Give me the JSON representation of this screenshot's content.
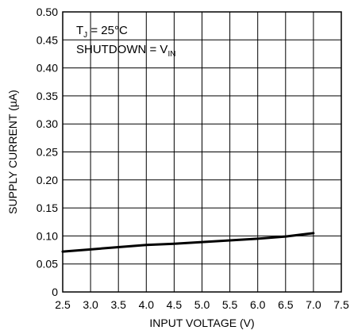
{
  "chart_data": {
    "type": "line",
    "xlabel": "INPUT VOLTAGE (V)",
    "ylabel": "SUPPLY CURRENT (µA)",
    "xlim": [
      2.5,
      7.5
    ],
    "ylim": [
      0,
      0.5
    ],
    "x_ticks": [
      "2.5",
      "3.0",
      "3.5",
      "4.0",
      "4.5",
      "5.0",
      "5.5",
      "6.0",
      "6.5",
      "7.0",
      "7.5"
    ],
    "y_ticks": [
      "0",
      "0.05",
      "0.10",
      "0.15",
      "0.20",
      "0.25",
      "0.30",
      "0.35",
      "0.40",
      "0.45",
      "0.50"
    ],
    "grid": true,
    "series": [
      {
        "x": [
          2.5,
          3.0,
          3.5,
          4.0,
          4.5,
          5.0,
          5.5,
          6.0,
          6.5,
          7.0
        ],
        "values": [
          0.072,
          0.076,
          0.08,
          0.084,
          0.086,
          0.089,
          0.092,
          0.095,
          0.099,
          0.105
        ],
        "color": "#000000"
      }
    ],
    "annotations": {
      "line1": {
        "main": "T",
        "sub": "J",
        "rest": " = 25°C"
      },
      "line2": {
        "main": "SHUTDOWN = V",
        "sub": "IN"
      }
    }
  }
}
